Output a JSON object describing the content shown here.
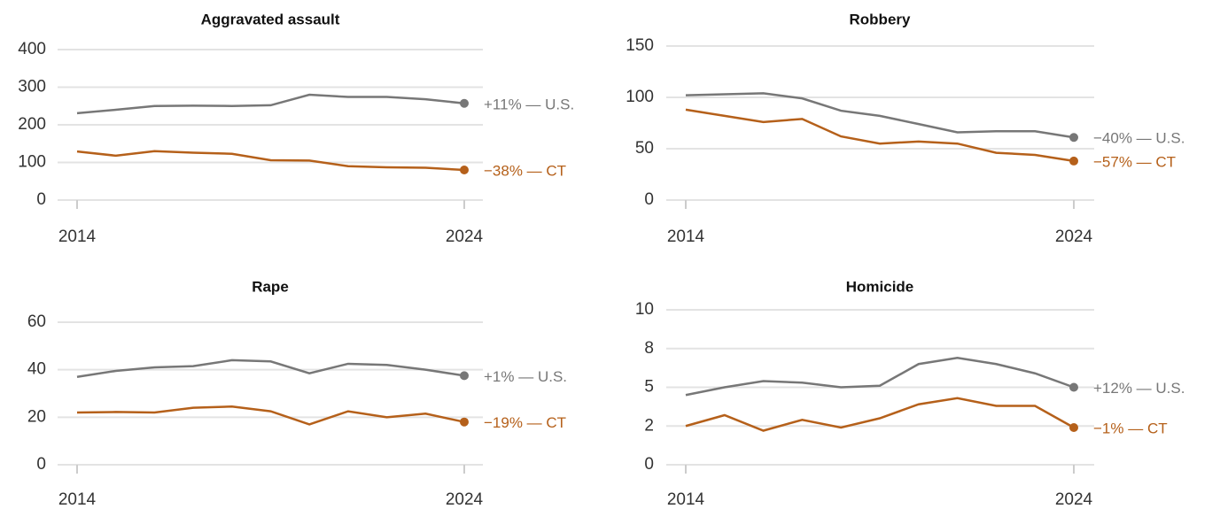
{
  "chart_data": [
    {
      "type": "line",
      "title": "Aggravated assault",
      "x": [
        2014,
        2015,
        2016,
        2017,
        2018,
        2019,
        2020,
        2021,
        2022,
        2023,
        2024
      ],
      "xlim": [
        2014,
        2024
      ],
      "xticks": [
        2014,
        2024
      ],
      "ylim": [
        0,
        400
      ],
      "yticks": [
        0,
        100,
        200,
        300,
        400
      ],
      "grid": true,
      "series": [
        {
          "label": "+11% — U.S.",
          "color": "#777777",
          "values": [
            231,
            240,
            250,
            251,
            250,
            252,
            280,
            274,
            274,
            268,
            257
          ]
        },
        {
          "label": "−38% — CT",
          "color": "#b5601a",
          "values": [
            129,
            118,
            130,
            126,
            123,
            106,
            105,
            90,
            87,
            86,
            80
          ]
        }
      ]
    },
    {
      "type": "line",
      "title": "Robbery",
      "x": [
        2014,
        2015,
        2016,
        2017,
        2018,
        2019,
        2020,
        2021,
        2022,
        2023,
        2024
      ],
      "xlim": [
        2014,
        2024
      ],
      "xticks": [
        2014,
        2024
      ],
      "ylim": [
        0,
        150
      ],
      "yticks": [
        0,
        50,
        100,
        150
      ],
      "grid": true,
      "series": [
        {
          "label": "−40% — U.S.",
          "color": "#777777",
          "values": [
            102,
            103,
            104,
            99,
            87,
            82,
            74,
            66,
            67,
            67,
            61
          ]
        },
        {
          "label": "−57% — CT",
          "color": "#b5601a",
          "values": [
            88,
            82,
            76,
            79,
            62,
            55,
            57,
            55,
            46,
            44,
            38
          ]
        }
      ]
    },
    {
      "type": "line",
      "title": "Rape",
      "x": [
        2014,
        2015,
        2016,
        2017,
        2018,
        2019,
        2020,
        2021,
        2022,
        2023,
        2024
      ],
      "xlim": [
        2014,
        2024
      ],
      "xticks": [
        2014,
        2024
      ],
      "ylim": [
        0,
        60
      ],
      "yticks": [
        0,
        20,
        40,
        60
      ],
      "grid": true,
      "series": [
        {
          "label": "+1% — U.S.",
          "color": "#777777",
          "values": [
            37,
            39.5,
            41,
            41.5,
            44,
            43.5,
            38.5,
            42.5,
            42,
            40,
            37.5
          ]
        },
        {
          "label": "−19% — CT",
          "color": "#b5601a",
          "values": [
            22,
            22.2,
            22,
            24,
            24.5,
            22.5,
            17,
            22.5,
            20,
            21.5,
            18
          ]
        }
      ]
    },
    {
      "type": "line",
      "title": "Homicide",
      "x": [
        2014,
        2015,
        2016,
        2017,
        2018,
        2019,
        2020,
        2021,
        2022,
        2023,
        2024
      ],
      "xlim": [
        2014,
        2024
      ],
      "xticks": [
        2014,
        2024
      ],
      "ylim": [
        0,
        10
      ],
      "yticks": [
        0,
        {
          "value": 2.5,
          "label": "2"
        },
        5,
        {
          "value": 7.5,
          "label": "8"
        },
        10
      ],
      "grid": true,
      "series": [
        {
          "label": "+12% — U.S.",
          "color": "#777777",
          "values": [
            4.5,
            5.0,
            5.4,
            5.3,
            5.0,
            5.1,
            6.5,
            6.9,
            6.5,
            5.9,
            5.0
          ]
        },
        {
          "label": "−1% — CT",
          "color": "#b5601a",
          "values": [
            2.5,
            3.2,
            2.2,
            2.9,
            2.4,
            3.0,
            3.9,
            4.3,
            3.8,
            3.8,
            2.4
          ]
        }
      ]
    }
  ]
}
